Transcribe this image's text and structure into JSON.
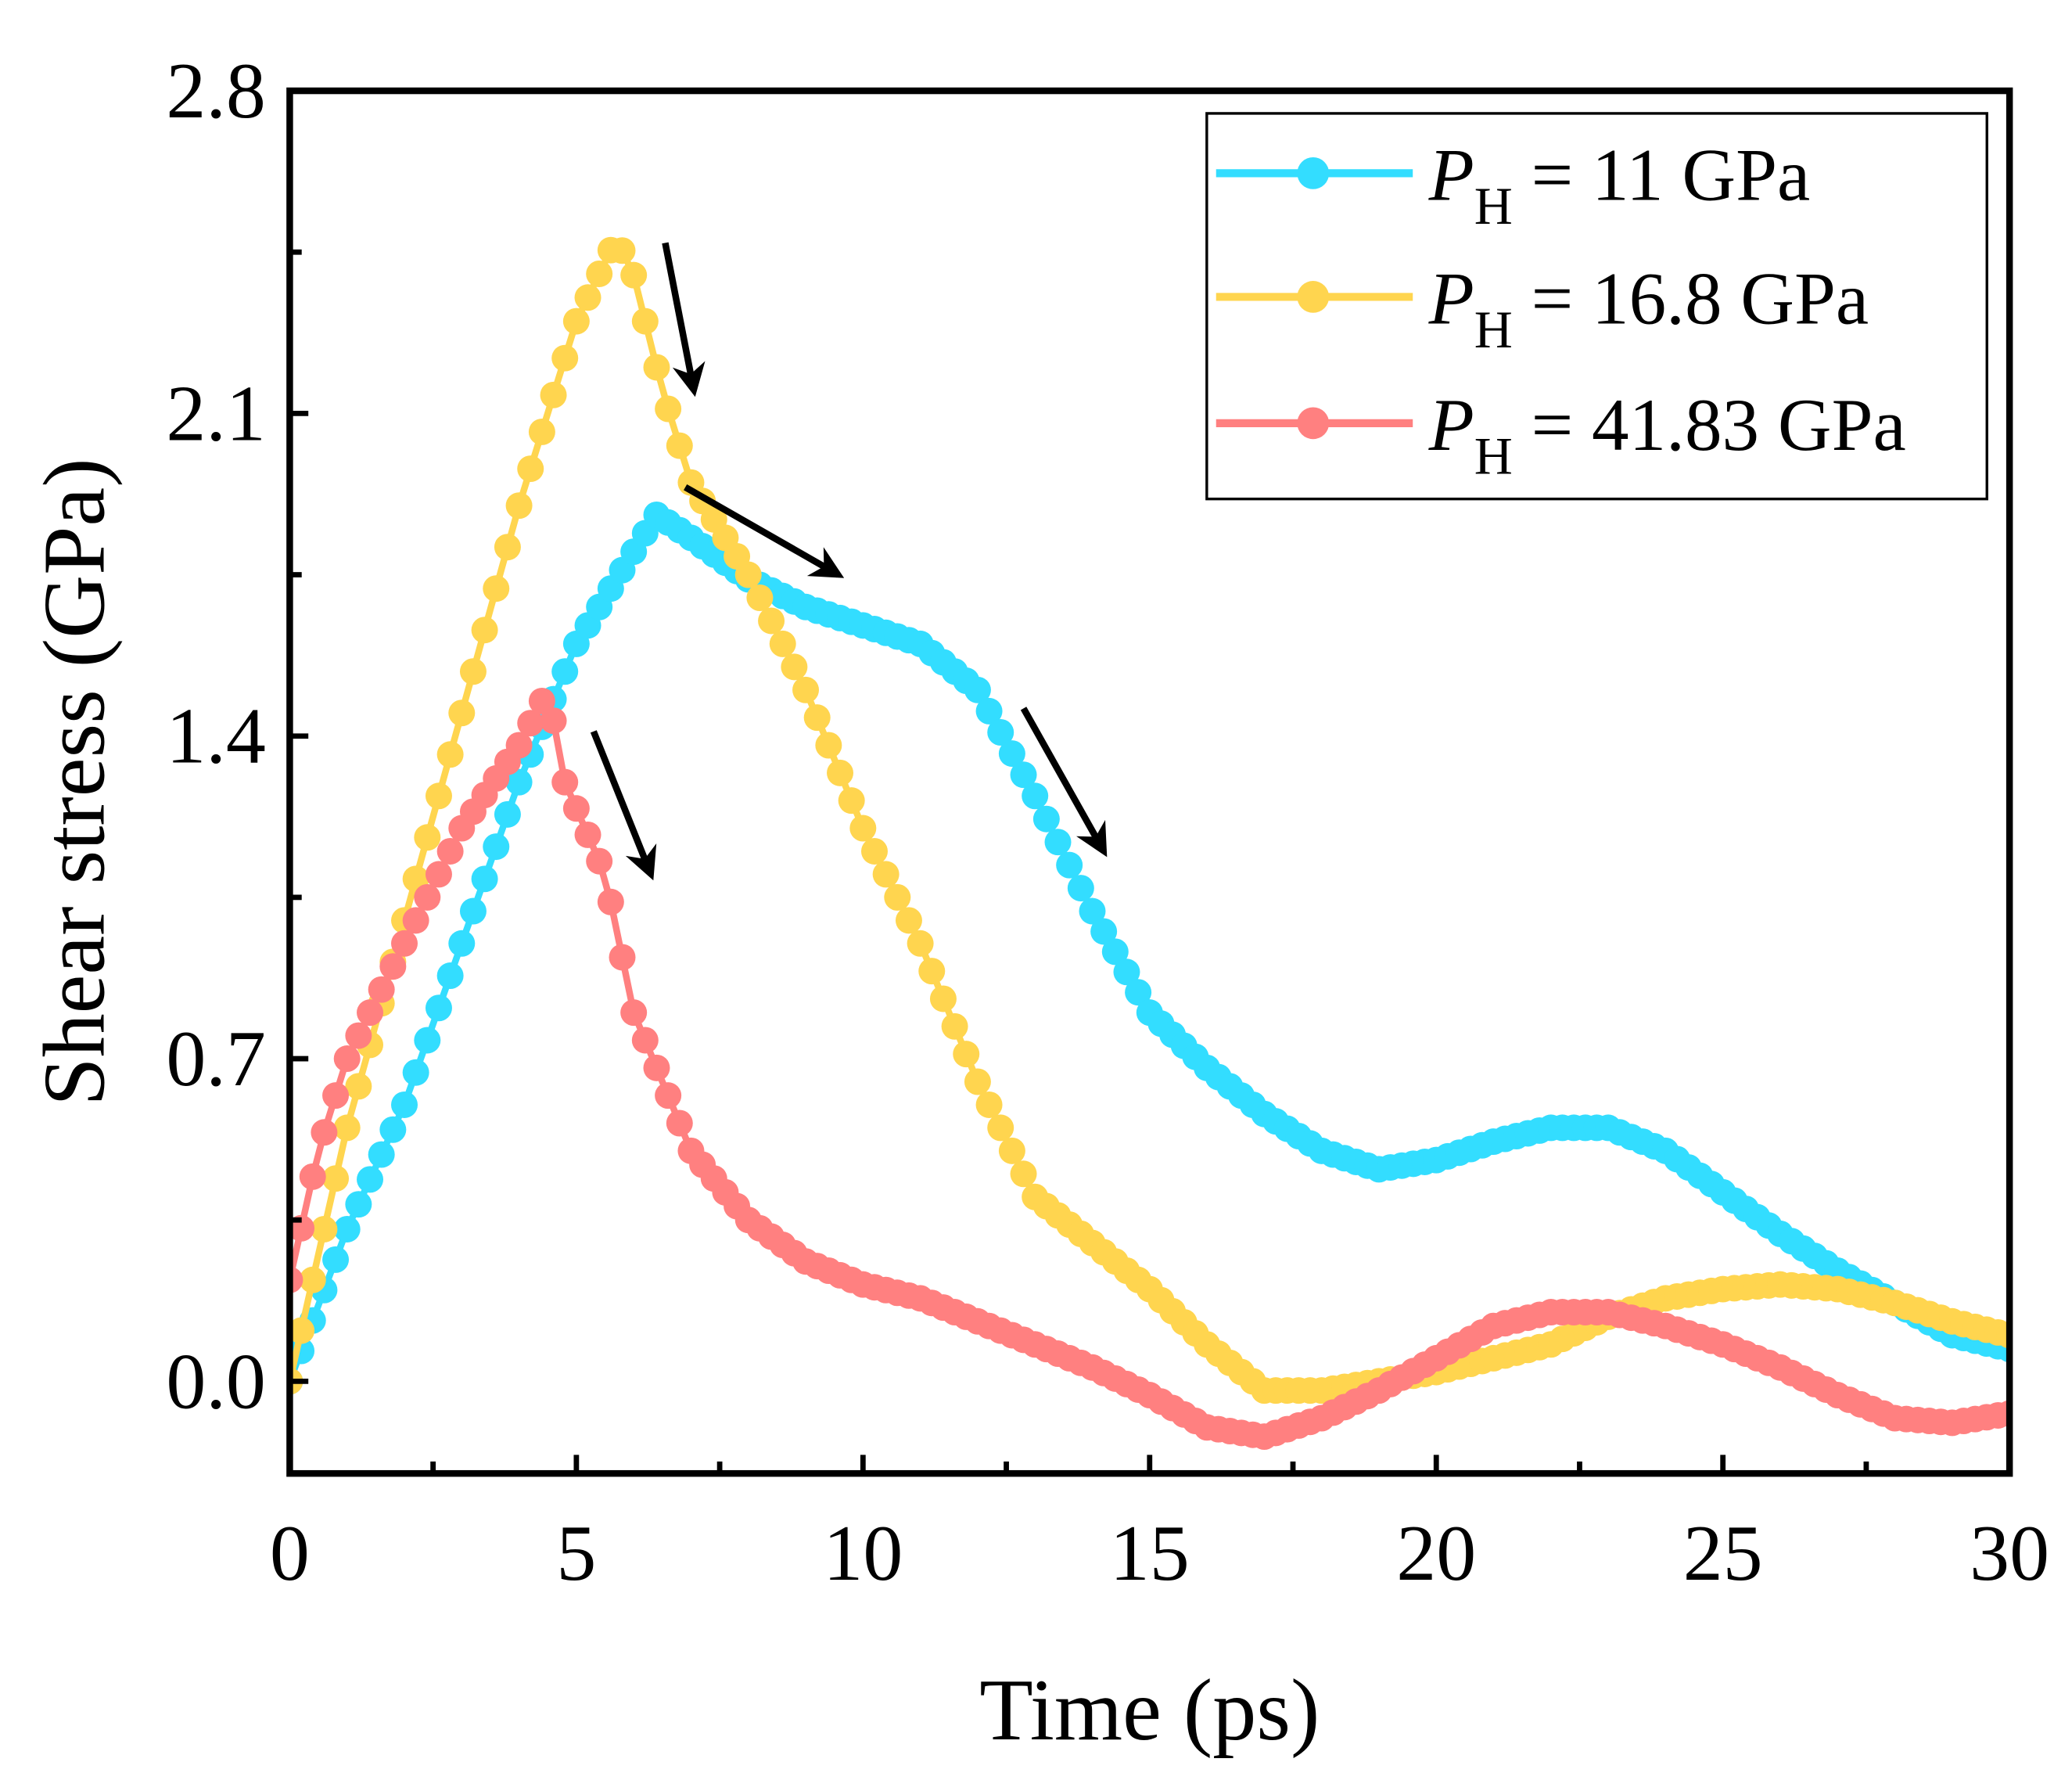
{
  "chart_data": {
    "type": "line",
    "title": "",
    "xlabel": "Time (ps)",
    "ylabel": "Shear stress (GPa)",
    "xlim": [
      0,
      30
    ],
    "ylim": [
      -0.2,
      2.8
    ],
    "xticks": [
      "0",
      "5",
      "10",
      "15",
      "20",
      "25",
      "30"
    ],
    "yticks": [
      "0.0",
      "0.7",
      "1.4",
      "2.1",
      "2.8"
    ],
    "xtick_values": [
      0,
      5,
      10,
      15,
      20,
      25,
      30
    ],
    "ytick_values": [
      0.0,
      0.7,
      1.4,
      2.1,
      2.8
    ],
    "grid": false,
    "legend_position": "top-right",
    "series": [
      {
        "name": "P_H = 11 GPa",
        "label_main": "P",
        "label_sub": "H",
        "label_rest": " = 11 GPa",
        "color": "#33DDFF",
        "x": [
          0,
          1,
          2,
          3,
          4,
          5,
          6,
          6.4,
          7,
          8,
          9,
          10,
          11,
          12,
          13,
          14,
          15,
          16,
          17,
          18,
          19,
          20,
          21,
          22,
          23,
          24,
          25,
          26,
          27,
          28,
          29,
          30
        ],
        "y": [
          0,
          0.33,
          0.6,
          0.95,
          1.3,
          1.6,
          1.8,
          1.88,
          1.83,
          1.74,
          1.68,
          1.64,
          1.6,
          1.5,
          1.27,
          1.02,
          0.8,
          0.68,
          0.58,
          0.5,
          0.46,
          0.48,
          0.52,
          0.55,
          0.55,
          0.5,
          0.41,
          0.32,
          0.24,
          0.17,
          0.1,
          0.07
        ]
      },
      {
        "name": "P_H = 16.8 GPa",
        "label_main": "P",
        "label_sub": "H",
        "label_rest": " = 16.8 GPa",
        "color": "#FFD54F",
        "x": [
          0,
          1,
          2,
          3,
          4,
          5,
          5.7,
          6,
          6.5,
          7,
          8,
          9,
          10,
          11,
          12,
          13,
          14,
          15,
          16,
          17,
          18,
          19,
          20,
          21,
          22,
          23,
          24,
          25,
          26,
          27,
          28,
          29,
          30
        ],
        "y": [
          0,
          0.55,
          1.0,
          1.45,
          1.9,
          2.3,
          2.48,
          2.4,
          2.15,
          1.95,
          1.75,
          1.5,
          1.2,
          0.95,
          0.65,
          0.4,
          0.3,
          0.2,
          0.08,
          -0.02,
          -0.02,
          0.0,
          0.02,
          0.05,
          0.08,
          0.14,
          0.18,
          0.2,
          0.21,
          0.2,
          0.17,
          0.13,
          0.1
        ]
      },
      {
        "name": "P_H = 41.83 GPa",
        "label_main": "P",
        "label_sub": "H",
        "label_rest": " = 41.83 GPa",
        "color": "#FF8080",
        "x": [
          0,
          0.5,
          1,
          2,
          3,
          4,
          4.5,
          4.8,
          5.5,
          6,
          6.5,
          7,
          8,
          9,
          10,
          11,
          12,
          13,
          14,
          15,
          16,
          17,
          18,
          19,
          20,
          21,
          22,
          23,
          24,
          25,
          26,
          27,
          28,
          29,
          30
        ],
        "y": [
          0.22,
          0.5,
          0.7,
          0.95,
          1.2,
          1.38,
          1.5,
          1.3,
          1.1,
          0.8,
          0.65,
          0.5,
          0.35,
          0.26,
          0.21,
          0.18,
          0.13,
          0.08,
          0.03,
          -0.03,
          -0.1,
          -0.12,
          -0.08,
          -0.02,
          0.05,
          0.12,
          0.15,
          0.15,
          0.12,
          0.08,
          0.03,
          -0.03,
          -0.08,
          -0.09,
          -0.07
        ]
      }
    ],
    "annotations": [
      {
        "type": "arrow",
        "from": [
          6.55,
          2.47
        ],
        "to": [
          7.05,
          2.15
        ]
      },
      {
        "type": "arrow",
        "from": [
          6.9,
          1.94
        ],
        "to": [
          9.57,
          1.75
        ]
      },
      {
        "type": "arrow",
        "from": [
          12.8,
          1.46
        ],
        "to": [
          14.2,
          1.15
        ]
      },
      {
        "type": "arrow",
        "from": [
          5.3,
          1.41
        ],
        "to": [
          6.3,
          1.1
        ]
      }
    ]
  }
}
